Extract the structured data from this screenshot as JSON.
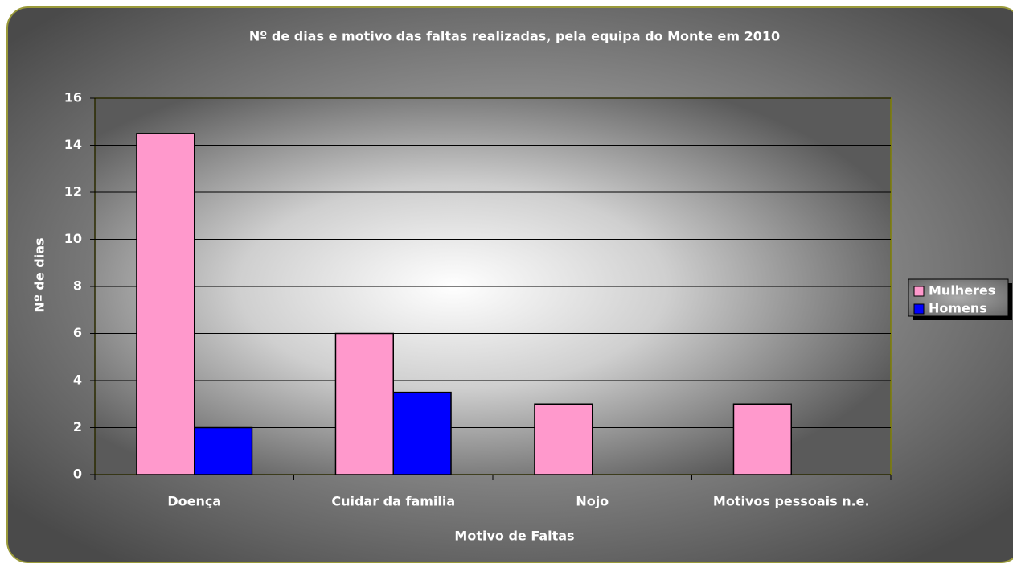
{
  "chart_data": {
    "type": "bar",
    "title": "Nº de dias e motivo das faltas realizadas, pela equipa do Monte em 2010",
    "x_label": "Motivo de Faltas",
    "y_label": "Nº de dias",
    "categories": [
      "Doença",
      "Cuidar da familia",
      "Nojo",
      "Motivos pessoais n.e."
    ],
    "series": [
      {
        "name": "Mulheres",
        "color": "#ff99cc",
        "values": [
          14.5,
          6,
          3,
          3
        ]
      },
      {
        "name": "Homens",
        "color": "#0000ff",
        "values": [
          2,
          3.5,
          0,
          0
        ]
      }
    ],
    "ylim": [
      0,
      16
    ],
    "yticks": [
      0,
      2,
      4,
      6,
      8,
      10,
      12,
      14,
      16
    ],
    "grid": true,
    "legend": "right"
  }
}
